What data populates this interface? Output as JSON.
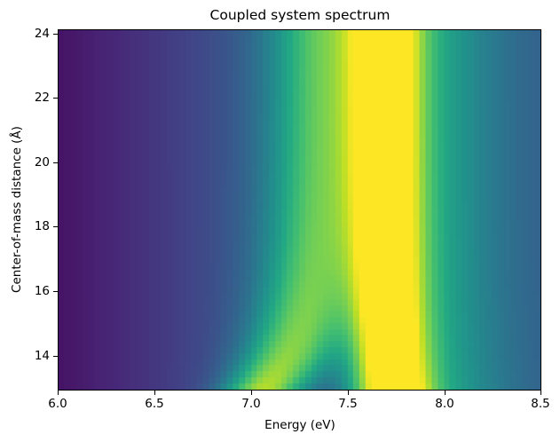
{
  "chart_data": {
    "type": "heatmap",
    "title": "Coupled system spectrum",
    "xlabel": "Energy (eV)",
    "ylabel": "Center-of-mass distance (Å)",
    "xlim": [
      6.0,
      8.5
    ],
    "ylim": [
      12.9,
      24.1
    ],
    "xticks": [
      "6.0",
      "6.5",
      "7.0",
      "7.5",
      "8.0",
      "8.5"
    ],
    "yticks": [
      "14",
      "16",
      "18",
      "20",
      "22",
      "24"
    ],
    "colormap": "viridis",
    "grid": false,
    "features": [
      {
        "name": "upper branch peak",
        "energy_eV_at_large_distance": 7.7,
        "energy_eV_at_13A": 7.75,
        "intensity": "max"
      },
      {
        "name": "lower branch peak",
        "energy_eV_at_large_distance": 7.35,
        "energy_eV_at_13A": 7.05,
        "intensity": "medium-high"
      },
      {
        "name": "gap between branches at 13 Å",
        "energy_eV": 7.35,
        "intensity": "low"
      }
    ]
  }
}
